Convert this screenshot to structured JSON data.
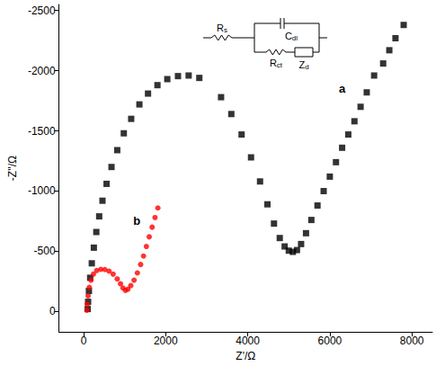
{
  "chart_data": {
    "type": "scatter",
    "x_label": "Z'/Ω",
    "y_label": "-Z''/Ω",
    "xlim": [
      -600,
      8500
    ],
    "xticks": [
      0,
      2000,
      4000,
      6000,
      8000
    ],
    "ylim": [
      170,
      -2550
    ],
    "yticks": [
      0,
      -500,
      -1000,
      -1500,
      -2000,
      -2500
    ],
    "grid": false,
    "series": [
      {
        "name": "a",
        "color": "#000000",
        "marker": "square",
        "label_at": [
          6300,
          -1850
        ],
        "x": [
          100,
          110,
          130,
          160,
          200,
          250,
          310,
          380,
          460,
          560,
          680,
          820,
          980,
          1160,
          1360,
          1570,
          1800,
          2040,
          2300,
          2560,
          2820,
          3350,
          3600,
          3850,
          4080,
          4300,
          4480,
          4640,
          4780,
          4900,
          5000,
          5100,
          5200,
          5300,
          5420,
          5550,
          5700,
          5850,
          6000,
          6150,
          6300,
          6450,
          6600,
          6750,
          6900,
          7080,
          7300,
          7450,
          7600,
          7800
        ],
        "values": [
          -20,
          -80,
          -170,
          -280,
          -400,
          -530,
          -660,
          -790,
          -920,
          -1060,
          -1200,
          -1340,
          -1480,
          -1600,
          -1720,
          -1810,
          -1880,
          -1930,
          -1955,
          -1960,
          -1940,
          -1780,
          -1640,
          -1470,
          -1280,
          -1080,
          -890,
          -730,
          -610,
          -540,
          -505,
          -495,
          -510,
          -560,
          -650,
          -760,
          -880,
          -1000,
          -1120,
          -1240,
          -1360,
          -1470,
          -1580,
          -1700,
          -1820,
          -1960,
          -2060,
          -2170,
          -2270,
          -2380
        ]
      },
      {
        "name": "b",
        "color": "#ff0000",
        "marker": "circle",
        "label_at": [
          1300,
          -750
        ],
        "x": [
          80,
          90,
          110,
          140,
          180,
          240,
          320,
          420,
          520,
          620,
          720,
          820,
          900,
          960,
          1020,
          1080,
          1150,
          1230,
          1310,
          1390,
          1460,
          1530,
          1600,
          1670,
          1740,
          1810
        ],
        "values": [
          -10,
          -60,
          -130,
          -200,
          -260,
          -310,
          -340,
          -350,
          -348,
          -335,
          -310,
          -270,
          -230,
          -195,
          -175,
          -185,
          -215,
          -260,
          -320,
          -390,
          -460,
          -540,
          -620,
          -700,
          -780,
          -860
        ]
      }
    ],
    "circuit_labels": [
      "Rs",
      "Cdl",
      "Rct",
      "Zd"
    ]
  }
}
